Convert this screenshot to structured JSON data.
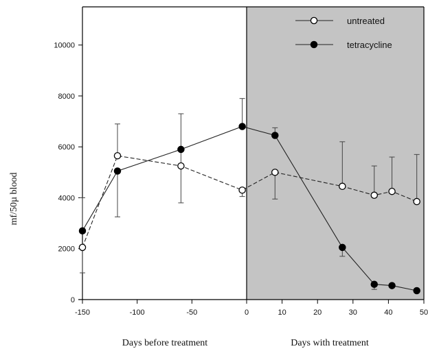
{
  "chart_data": {
    "type": "line",
    "title": "",
    "ylabel": "mf/50µ blood",
    "xlabels": [
      "Days before treatment",
      "Days with treatment"
    ],
    "ylim": [
      0,
      11500
    ],
    "x_before_ticks": [
      -150,
      -100,
      -50,
      0
    ],
    "x_after_ticks": [
      0,
      10,
      20,
      30,
      40,
      50
    ],
    "y_ticks": [
      0,
      2000,
      4000,
      6000,
      8000,
      10000
    ],
    "shaded_region": "treatment period",
    "legend_position": "top-right",
    "series": [
      {
        "name": "untreated",
        "marker": "open-circle",
        "before": [
          {
            "x": -150,
            "y": 2050,
            "err_low": 1050,
            "err_high": 2050
          },
          {
            "x": -118,
            "y": 5650,
            "err_low": 5650,
            "err_high": 6900
          },
          {
            "x": -60,
            "y": 5250,
            "err_low": 3800,
            "err_high": 7300
          },
          {
            "x": -4,
            "y": 4300,
            "err_low": 4050,
            "err_high": 4300
          }
        ],
        "after": [
          {
            "x": 8,
            "y": 5000,
            "err_low": 3950,
            "err_high": 5000
          },
          {
            "x": 27,
            "y": 4450,
            "err_low": 4450,
            "err_high": 6200
          },
          {
            "x": 36,
            "y": 4100,
            "err_low": 4100,
            "err_high": 5250
          },
          {
            "x": 41,
            "y": 4250,
            "err_low": 4250,
            "err_high": 5600
          },
          {
            "x": 48,
            "y": 3850,
            "err_low": 3850,
            "err_high": 5700
          }
        ]
      },
      {
        "name": "tetracycline",
        "marker": "filled-circle",
        "before": [
          {
            "x": -150,
            "y": 2700,
            "err_low": 2700,
            "err_high": 4000
          },
          {
            "x": -118,
            "y": 5050,
            "err_low": 3250,
            "err_high": 5050
          },
          {
            "x": -60,
            "y": 5900,
            "err_low": 5900,
            "err_high": 5900
          },
          {
            "x": -4,
            "y": 6800,
            "err_low": 6800,
            "err_high": 7900
          }
        ],
        "after": [
          {
            "x": 8,
            "y": 6450,
            "err_low": 6450,
            "err_high": 6750
          },
          {
            "x": 27,
            "y": 2050,
            "err_low": 1700,
            "err_high": 2050
          },
          {
            "x": 36,
            "y": 600,
            "err_low": 400,
            "err_high": 600
          },
          {
            "x": 41,
            "y": 550,
            "err_low": 550,
            "err_high": 550
          },
          {
            "x": 48,
            "y": 350,
            "err_low": 350,
            "err_high": 350
          }
        ]
      }
    ],
    "colors": {
      "shade": "#c4c4c4",
      "ink": "#222222"
    }
  }
}
